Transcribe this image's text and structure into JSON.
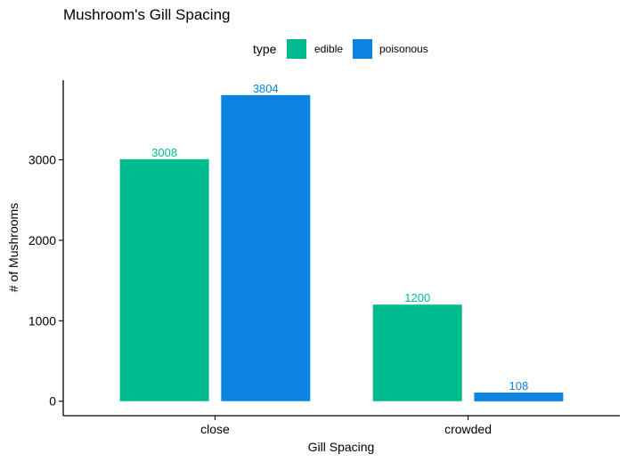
{
  "chart_data": {
    "type": "bar",
    "title": "Mushroom's Gill Spacing",
    "xlabel": "Gill Spacing",
    "ylabel": "# of Mushrooms",
    "categories": [
      "close",
      "crowded"
    ],
    "series": [
      {
        "name": "edible",
        "values": [
          3008,
          1200
        ],
        "color": "#00BA8F"
      },
      {
        "name": "poisonous",
        "values": [
          3804,
          108
        ],
        "color": "#0A84E0"
      }
    ],
    "ylim": [
      -180,
      3990
    ],
    "yticks": [
      0,
      1000,
      2000,
      3000
    ],
    "grid": false,
    "legend": {
      "title": "type",
      "position": "top"
    },
    "data_labels": true
  }
}
